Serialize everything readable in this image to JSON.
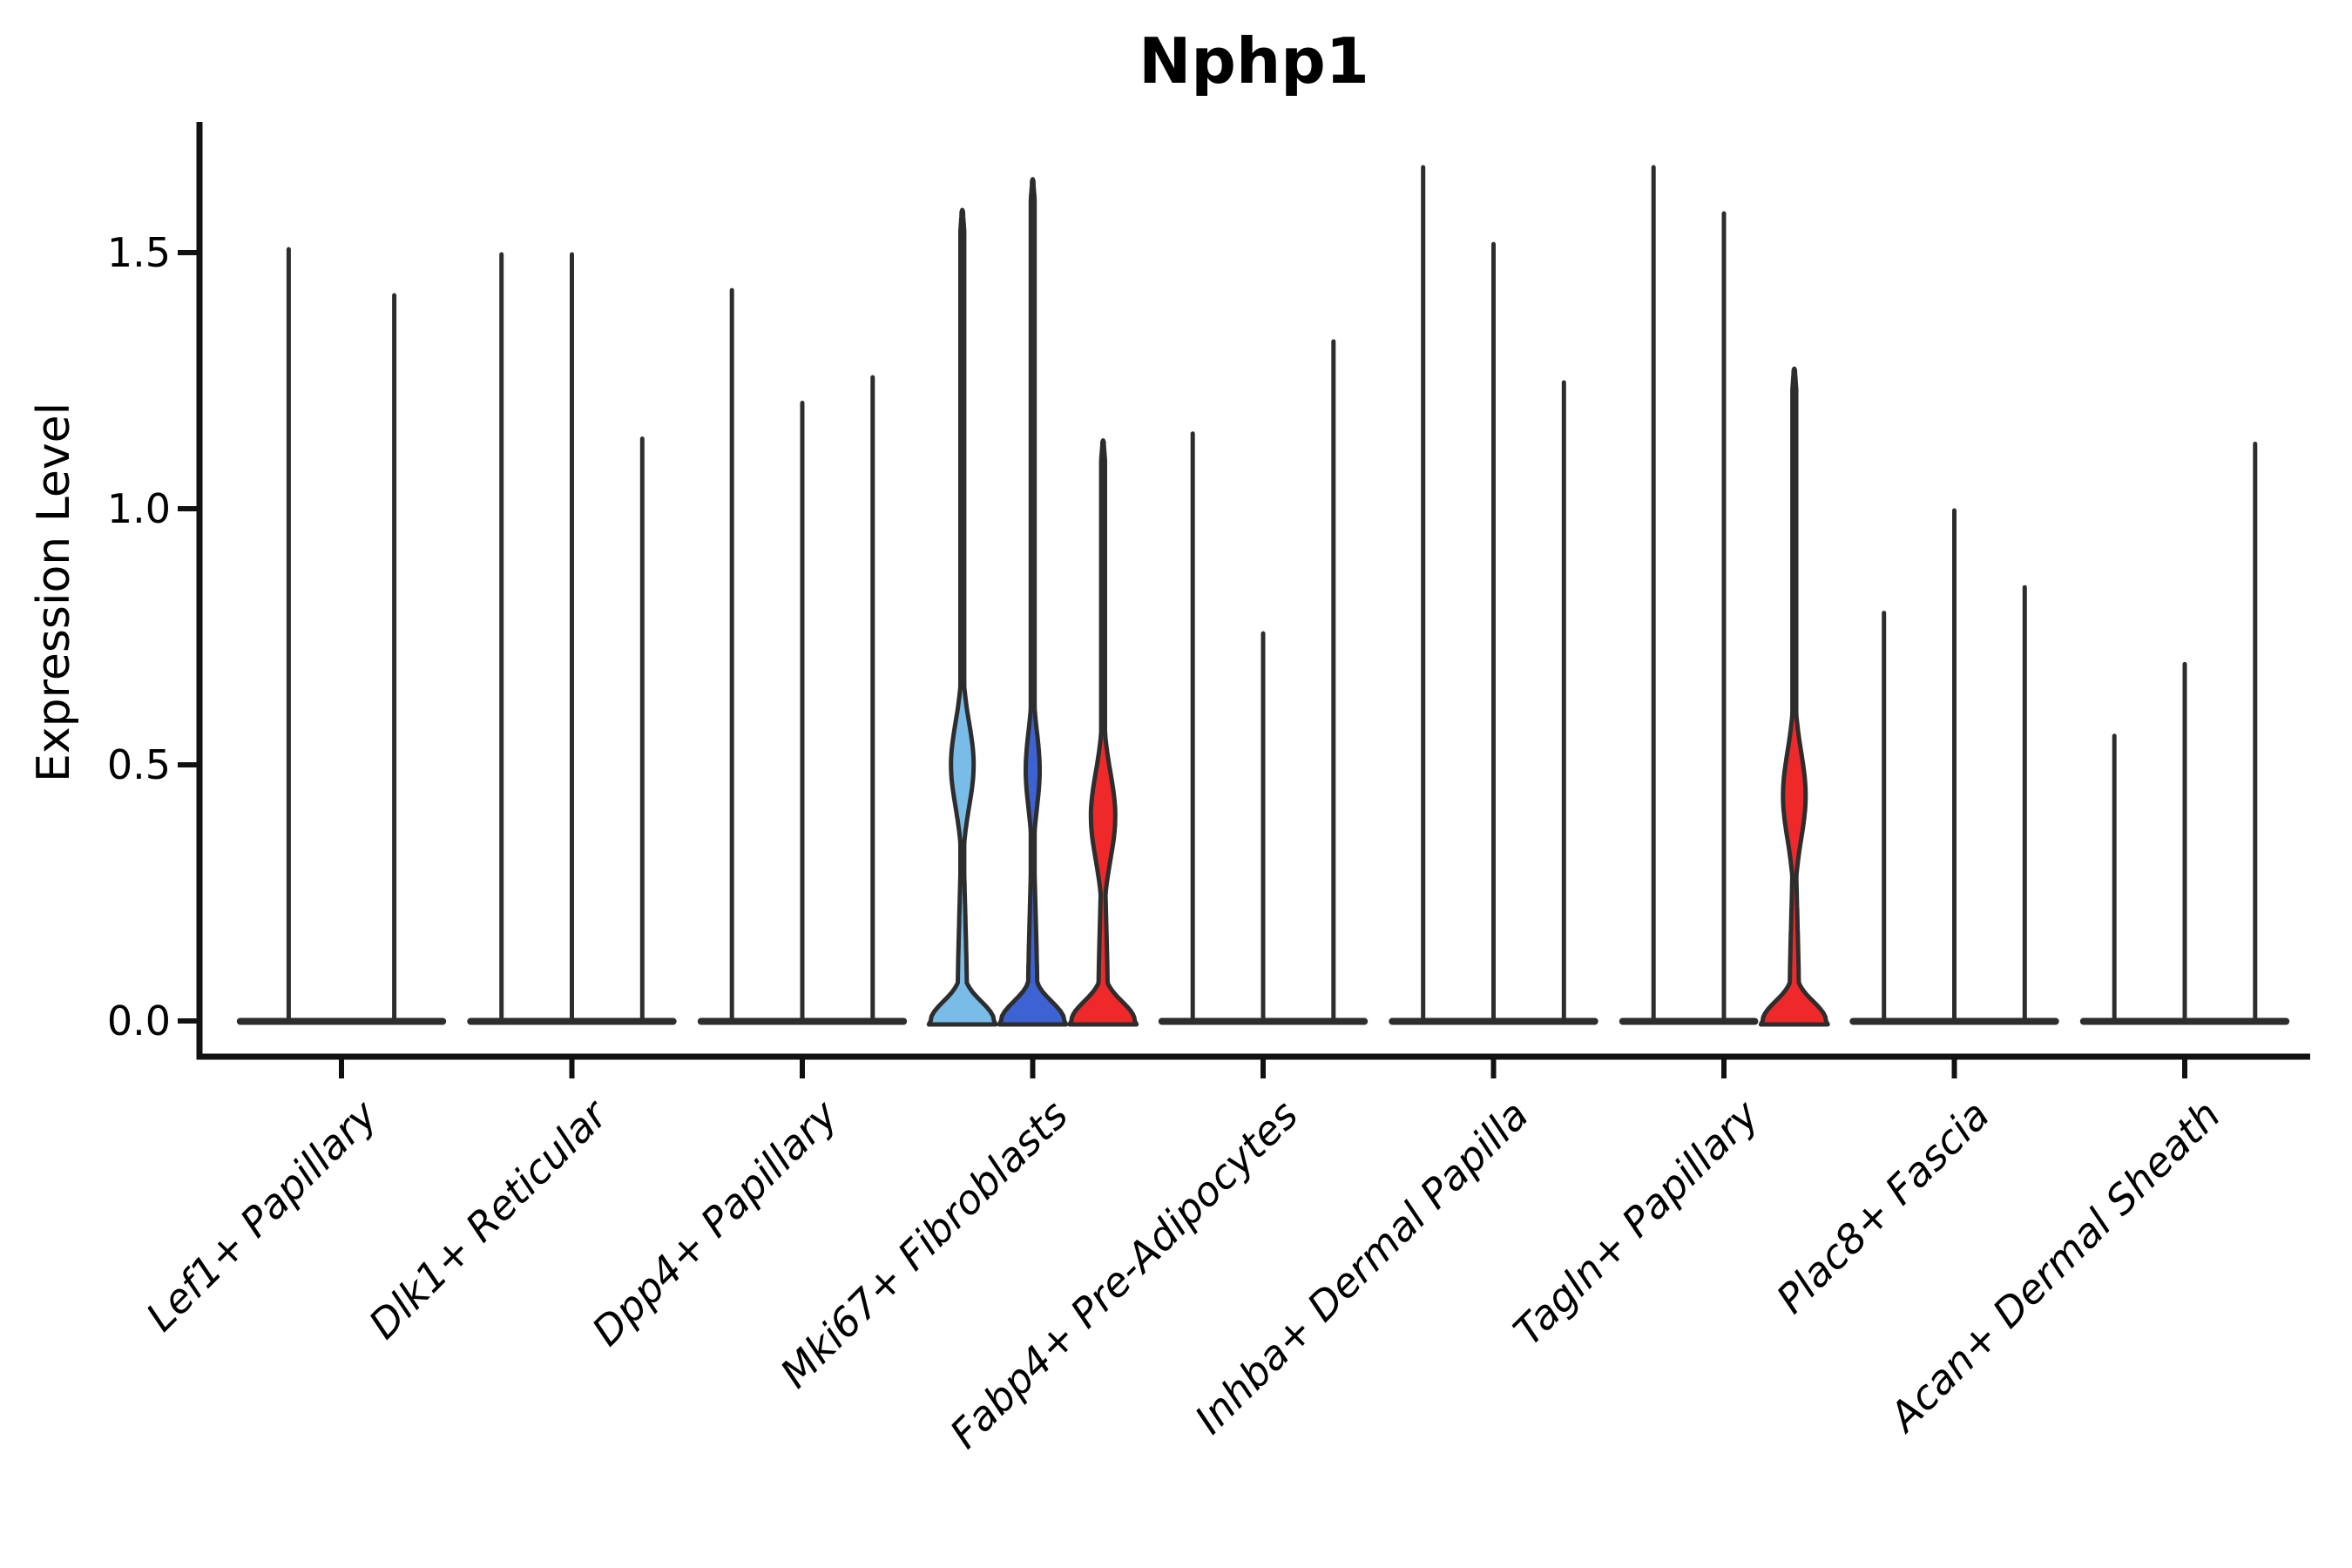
{
  "chart_data": {
    "type": "violin",
    "title": "Nphp1",
    "ylabel": "Expression Level",
    "ytick_labels": [
      "0.0",
      "0.5",
      "1.0",
      "1.5"
    ],
    "ytick_values": [
      0.0,
      0.5,
      1.0,
      1.5
    ],
    "ylim": [
      -0.07,
      1.76
    ],
    "grid": false,
    "legend": "none",
    "categories": [
      "Lef1+ Papillary",
      "Dlk1+ Reticular",
      "Dpp4+ Papillary",
      "Mki67+ Fibroblasts",
      "Fabp4+ Pre-Adipocytes",
      "Inhba+ Dermal Papilla",
      "Tagln+ Papillary",
      "Plac8+ Fascia",
      "Acan+ Dermal Sheath"
    ],
    "groups": [
      {
        "category": "Lef1+ Papillary",
        "violins": [
          {
            "max": 1.51,
            "shape": "spike"
          },
          {
            "max": 1.42,
            "shape": "spike"
          }
        ]
      },
      {
        "category": "Dlk1+ Reticular",
        "violins": [
          {
            "max": 1.5,
            "shape": "spike"
          },
          {
            "max": 1.5,
            "shape": "spike"
          },
          {
            "max": 1.14,
            "shape": "spike"
          }
        ]
      },
      {
        "category": "Dpp4+ Papillary",
        "violins": [
          {
            "max": 1.43,
            "shape": "spike"
          },
          {
            "max": 1.21,
            "shape": "spike"
          },
          {
            "max": 1.26,
            "shape": "spike"
          }
        ]
      },
      {
        "category": "Mki67+ Fibroblasts",
        "violins": [
          {
            "max": 1.58,
            "shape": "violin",
            "fill": "#79BCE7",
            "bulge": {
              "center": 0.5,
              "spread": 0.115,
              "half_width": 13
            }
          },
          {
            "max": 1.64,
            "shape": "violin",
            "fill": "#3D63D2",
            "bulge": {
              "center": 0.49,
              "spread": 0.105,
              "half_width": 8
            }
          },
          {
            "max": 1.13,
            "shape": "violin",
            "fill": "#EF2929",
            "bulge": {
              "center": 0.4,
              "spread": 0.12,
              "half_width": 14
            }
          }
        ]
      },
      {
        "category": "Fabp4+ Pre-Adipocytes",
        "violins": [
          {
            "max": 1.15,
            "shape": "spike"
          },
          {
            "max": 0.76,
            "shape": "spike"
          },
          {
            "max": 1.33,
            "shape": "spike"
          }
        ]
      },
      {
        "category": "Inhba+ Dermal Papilla",
        "violins": [
          {
            "max": 1.67,
            "shape": "spike"
          },
          {
            "max": 1.52,
            "shape": "spike"
          },
          {
            "max": 1.25,
            "shape": "spike"
          }
        ]
      },
      {
        "category": "Tagln+ Papillary",
        "violins": [
          {
            "max": 1.67,
            "shape": "spike"
          },
          {
            "max": 1.58,
            "shape": "spike"
          },
          {
            "max": 1.27,
            "shape": "violin",
            "fill": "#EF2929",
            "bulge": {
              "center": 0.44,
              "spread": 0.12,
              "half_width": 13
            }
          }
        ]
      },
      {
        "category": "Plac8+ Fascia",
        "violins": [
          {
            "max": 0.8,
            "shape": "spike"
          },
          {
            "max": 1.0,
            "shape": "spike"
          },
          {
            "max": 0.85,
            "shape": "spike"
          }
        ]
      },
      {
        "category": "Acan+ Dermal Sheath",
        "violins": [
          {
            "max": 0.56,
            "shape": "spike"
          },
          {
            "max": 0.7,
            "shape": "spike"
          },
          {
            "max": 1.13,
            "shape": "spike"
          }
        ]
      }
    ],
    "colors": {
      "outline": "#2D2D2D",
      "spike": "#2D2D2D",
      "axis": "#111111",
      "light_blue": "#79BCE7",
      "royal_blue": "#3D63D2",
      "red": "#EF2929",
      "background": "#FFFFFF"
    }
  }
}
